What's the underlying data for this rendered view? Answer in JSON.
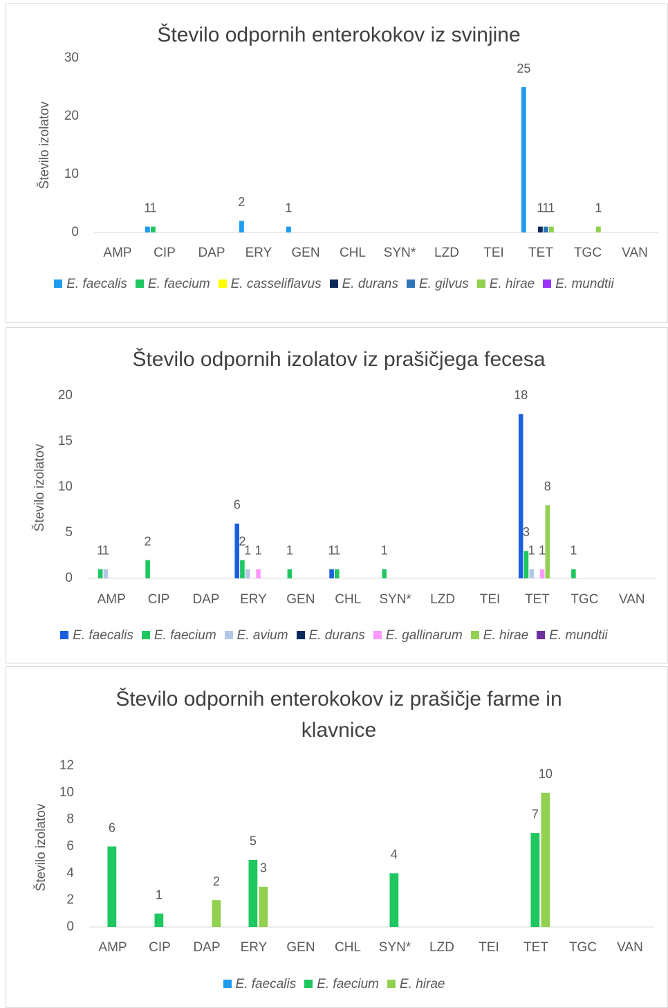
{
  "chart_data": [
    {
      "type": "bar",
      "title": "Število odpornih enterokokov iz svinjine",
      "y_label": "Število izolatov",
      "categories": [
        "AMP",
        "CIP",
        "DAP",
        "ERY",
        "GEN",
        "CHL",
        "SYN*",
        "LZD",
        "TEI",
        "TET",
        "TGC",
        "VAN"
      ],
      "ylim": [
        0,
        30
      ],
      "yticks": [
        0,
        10,
        20,
        30
      ],
      "series": [
        {
          "name": "E. faecalis",
          "color": "#1f9bf0",
          "values": [
            0,
            1,
            0,
            2,
            1,
            0,
            0,
            0,
            0,
            25,
            0,
            0
          ]
        },
        {
          "name": "E. faecium",
          "color": "#1ec760",
          "values": [
            0,
            1,
            0,
            0,
            0,
            0,
            0,
            0,
            0,
            0,
            0,
            0
          ]
        },
        {
          "name": "E. casseliflavus",
          "color": "#ffff00",
          "values": [
            0,
            0,
            0,
            0,
            0,
            0,
            0,
            0,
            0,
            0,
            0,
            0
          ]
        },
        {
          "name": "E. durans",
          "color": "#0b2a5b",
          "values": [
            0,
            0,
            0,
            0,
            0,
            0,
            0,
            0,
            0,
            1,
            0,
            0
          ]
        },
        {
          "name": "E. gilvus",
          "color": "#2e75b6",
          "values": [
            0,
            0,
            0,
            0,
            0,
            0,
            0,
            0,
            0,
            1,
            0,
            0
          ]
        },
        {
          "name": "E. hirae",
          "color": "#92d050",
          "values": [
            0,
            0,
            0,
            0,
            0,
            0,
            0,
            0,
            0,
            1,
            1,
            0
          ]
        },
        {
          "name": "E. mundtii",
          "color": "#9b30ff",
          "values": [
            0,
            0,
            0,
            0,
            0,
            0,
            0,
            0,
            0,
            0,
            0,
            0
          ]
        }
      ]
    },
    {
      "type": "bar",
      "title": "Število odpornih izolatov iz prašičjega fecesa",
      "y_label": "Število izolatov",
      "categories": [
        "AMP",
        "CIP",
        "DAP",
        "ERY",
        "GEN",
        "CHL",
        "SYN*",
        "LZD",
        "TEI",
        "TET",
        "TGC",
        "VAN"
      ],
      "ylim": [
        0,
        20
      ],
      "yticks": [
        0,
        5,
        10,
        15,
        20
      ],
      "series": [
        {
          "name": "E. faecalis",
          "color": "#1a5fe0",
          "values": [
            0,
            0,
            0,
            6,
            0,
            1,
            0,
            0,
            0,
            18,
            0,
            0
          ]
        },
        {
          "name": "E. faecium",
          "color": "#1ec760",
          "values": [
            1,
            2,
            0,
            2,
            1,
            1,
            1,
            0,
            0,
            3,
            1,
            0
          ]
        },
        {
          "name": "E. avium",
          "color": "#b4c7e7",
          "values": [
            1,
            0,
            0,
            1,
            0,
            0,
            0,
            0,
            0,
            1,
            0,
            0
          ]
        },
        {
          "name": "E. durans",
          "color": "#0b2a5b",
          "values": [
            0,
            0,
            0,
            0,
            0,
            0,
            0,
            0,
            0,
            0,
            0,
            0
          ]
        },
        {
          "name": "E. gallinarum",
          "color": "#ff99ff",
          "values": [
            0,
            0,
            0,
            1,
            0,
            0,
            0,
            0,
            0,
            1,
            0,
            0
          ]
        },
        {
          "name": "E. hirae",
          "color": "#92d050",
          "values": [
            0,
            0,
            0,
            0,
            0,
            0,
            0,
            0,
            0,
            8,
            0,
            0
          ]
        },
        {
          "name": "E. mundtii",
          "color": "#7030a0",
          "values": [
            0,
            0,
            0,
            0,
            0,
            0,
            0,
            0,
            0,
            0,
            0,
            0
          ]
        }
      ]
    },
    {
      "type": "bar",
      "title": "Število odpornih enterokokov iz prašičje farme in klavnice",
      "y_label": "Število izolatov",
      "categories": [
        "AMP",
        "CIP",
        "DAP",
        "ERY",
        "GEN",
        "CHL",
        "SYN*",
        "LZD",
        "TEI",
        "TET",
        "TGC",
        "VAN"
      ],
      "ylim": [
        0,
        12
      ],
      "yticks": [
        0,
        2,
        4,
        6,
        8,
        10,
        12
      ],
      "series": [
        {
          "name": "E. faecalis",
          "color": "#1f9bf0",
          "values": [
            0,
            0,
            0,
            0,
            0,
            0,
            0,
            0,
            0,
            0,
            0,
            0
          ]
        },
        {
          "name": "E. faecium",
          "color": "#1ec760",
          "values": [
            6,
            1,
            0,
            5,
            0,
            0,
            4,
            0,
            0,
            7,
            0,
            0
          ]
        },
        {
          "name": "E. hirae",
          "color": "#92d050",
          "values": [
            0,
            0,
            2,
            3,
            0,
            0,
            0,
            0,
            0,
            10,
            0,
            0
          ]
        }
      ]
    }
  ]
}
